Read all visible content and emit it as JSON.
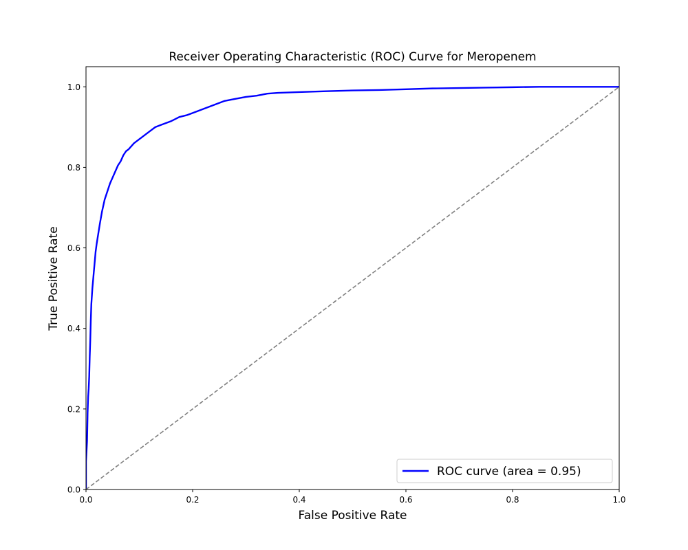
{
  "chart_data": {
    "type": "line",
    "title": "Receiver Operating Characteristic (ROC) Curve for Meropenem",
    "xlabel": "False Positive Rate",
    "ylabel": "True Positive Rate",
    "xlim": [
      0.0,
      1.0
    ],
    "ylim": [
      0.0,
      1.05
    ],
    "grid": false,
    "legend_position": "lower-right",
    "x_ticks": [
      0.0,
      0.2,
      0.4,
      0.6,
      0.8,
      1.0
    ],
    "x_tick_labels": [
      "0.0",
      "0.2",
      "0.4",
      "0.6",
      "0.8",
      "1.0"
    ],
    "y_ticks": [
      0.0,
      0.2,
      0.4,
      0.6,
      0.8,
      1.0
    ],
    "y_tick_labels": [
      "0.0",
      "0.2",
      "0.4",
      "0.6",
      "0.8",
      "1.0"
    ],
    "series": [
      {
        "name": "ROC curve (area = 0.95)",
        "color": "#0000ff",
        "line_style": "solid",
        "x": [
          0.0,
          0.0,
          0.002,
          0.003,
          0.004,
          0.005,
          0.006,
          0.007,
          0.008,
          0.009,
          0.01,
          0.012,
          0.014,
          0.016,
          0.018,
          0.02,
          0.023,
          0.026,
          0.03,
          0.035,
          0.04,
          0.045,
          0.05,
          0.055,
          0.06,
          0.065,
          0.07,
          0.075,
          0.08,
          0.09,
          0.1,
          0.11,
          0.12,
          0.13,
          0.14,
          0.15,
          0.16,
          0.175,
          0.19,
          0.2,
          0.22,
          0.24,
          0.26,
          0.28,
          0.3,
          0.32,
          0.34,
          0.36,
          0.4,
          0.45,
          0.5,
          0.55,
          0.6,
          0.65,
          0.7,
          0.75,
          0.8,
          0.85,
          0.9,
          0.95,
          1.0
        ],
        "y": [
          0.0,
          0.07,
          0.12,
          0.19,
          0.23,
          0.25,
          0.28,
          0.33,
          0.37,
          0.42,
          0.46,
          0.5,
          0.53,
          0.56,
          0.59,
          0.61,
          0.635,
          0.66,
          0.69,
          0.72,
          0.74,
          0.76,
          0.775,
          0.79,
          0.805,
          0.815,
          0.83,
          0.84,
          0.845,
          0.86,
          0.87,
          0.88,
          0.89,
          0.9,
          0.905,
          0.91,
          0.915,
          0.925,
          0.93,
          0.935,
          0.945,
          0.955,
          0.965,
          0.97,
          0.975,
          0.978,
          0.983,
          0.985,
          0.987,
          0.989,
          0.991,
          0.992,
          0.994,
          0.996,
          0.997,
          0.998,
          0.999,
          1.0,
          1.0,
          1.0,
          1.0
        ]
      },
      {
        "color": "#808080",
        "line_style": "dashed",
        "x": [
          0.0,
          1.0
        ],
        "y": [
          0.0,
          1.0
        ]
      }
    ]
  }
}
